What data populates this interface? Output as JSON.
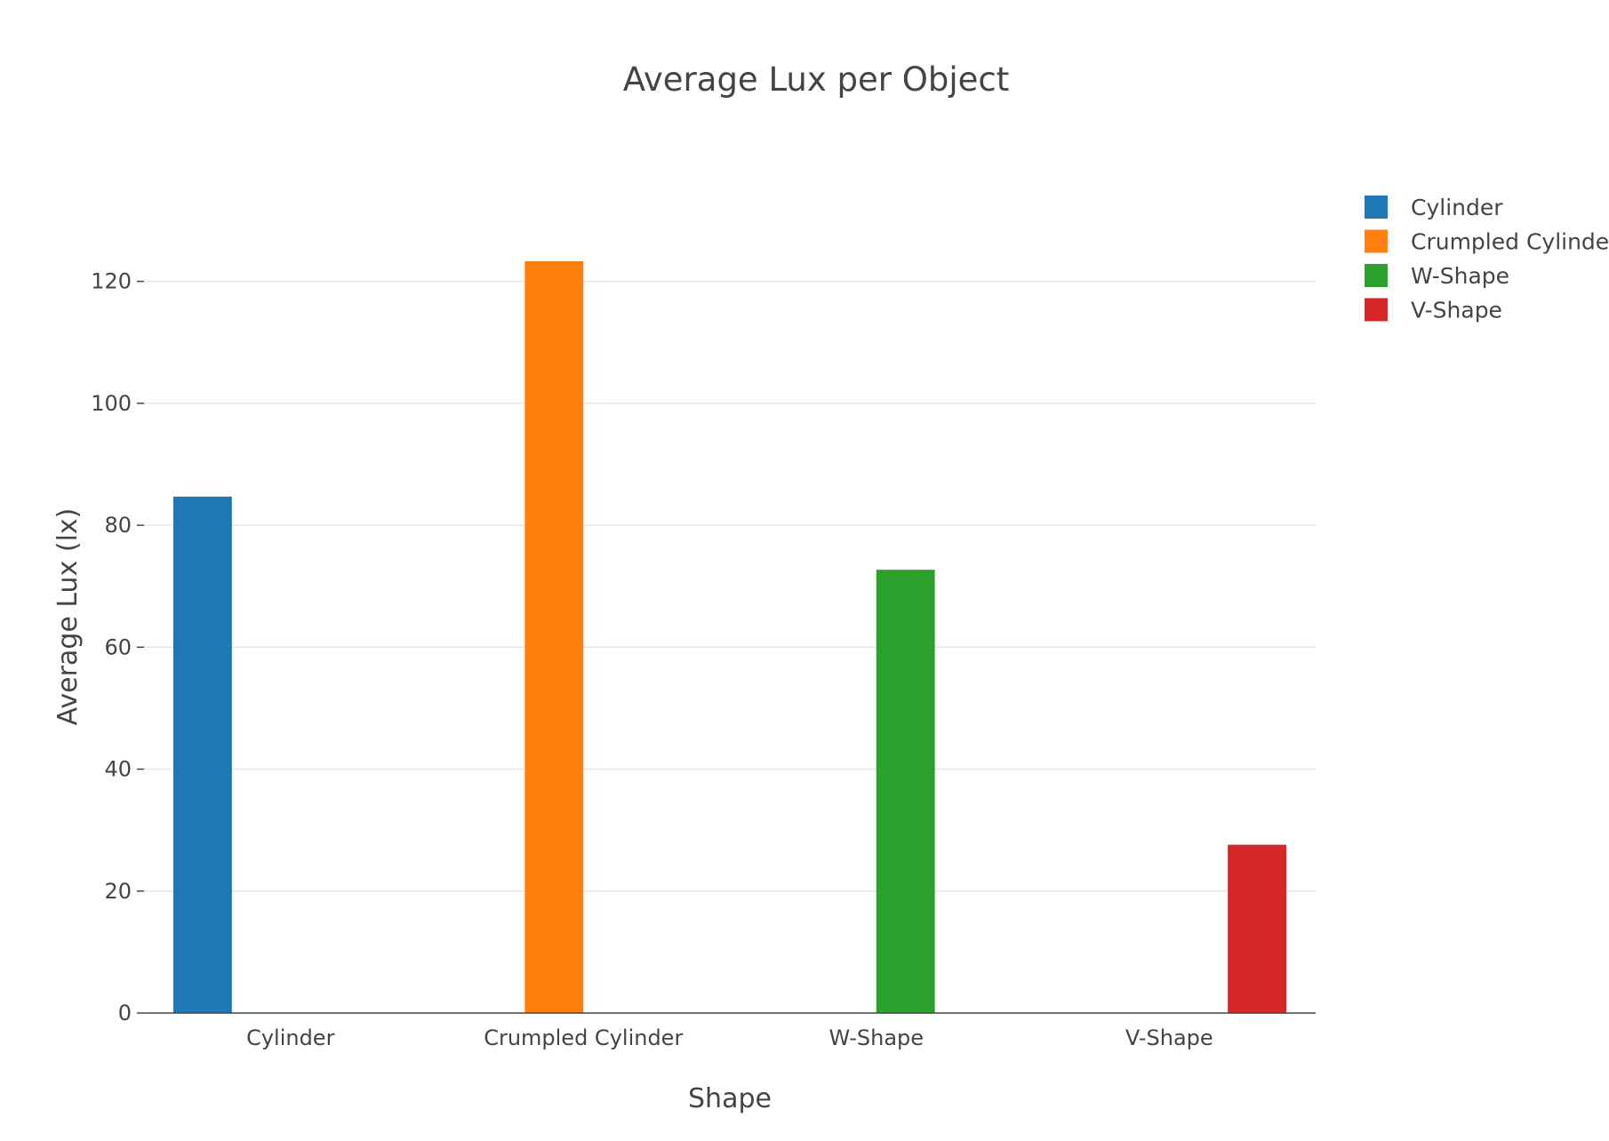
{
  "chart_data": {
    "type": "bar",
    "title": "Average Lux per Object",
    "xlabel": "Shape",
    "ylabel": "Average Lux (lx)",
    "categories": [
      "Cylinder",
      "Crumpled Cylinder",
      "W-Shape",
      "V-Shape"
    ],
    "series": [
      {
        "name": "Cylinder",
        "color": "#1f77b4",
        "values": [
          84.7,
          null,
          null,
          null
        ]
      },
      {
        "name": "Crumpled Cylinder",
        "color": "#ff7f0e",
        "values": [
          null,
          123.3,
          null,
          null
        ]
      },
      {
        "name": "W-Shape",
        "color": "#2ca02c",
        "values": [
          null,
          null,
          72.7,
          null
        ]
      },
      {
        "name": "V-Shape",
        "color": "#d62728",
        "values": [
          null,
          null,
          null,
          27.6
        ]
      }
    ],
    "ylim": [
      0,
      130
    ],
    "yticks": [
      0,
      20,
      40,
      60,
      80,
      100,
      120
    ],
    "grid": true,
    "legend": "top-right",
    "barmode": "group"
  }
}
